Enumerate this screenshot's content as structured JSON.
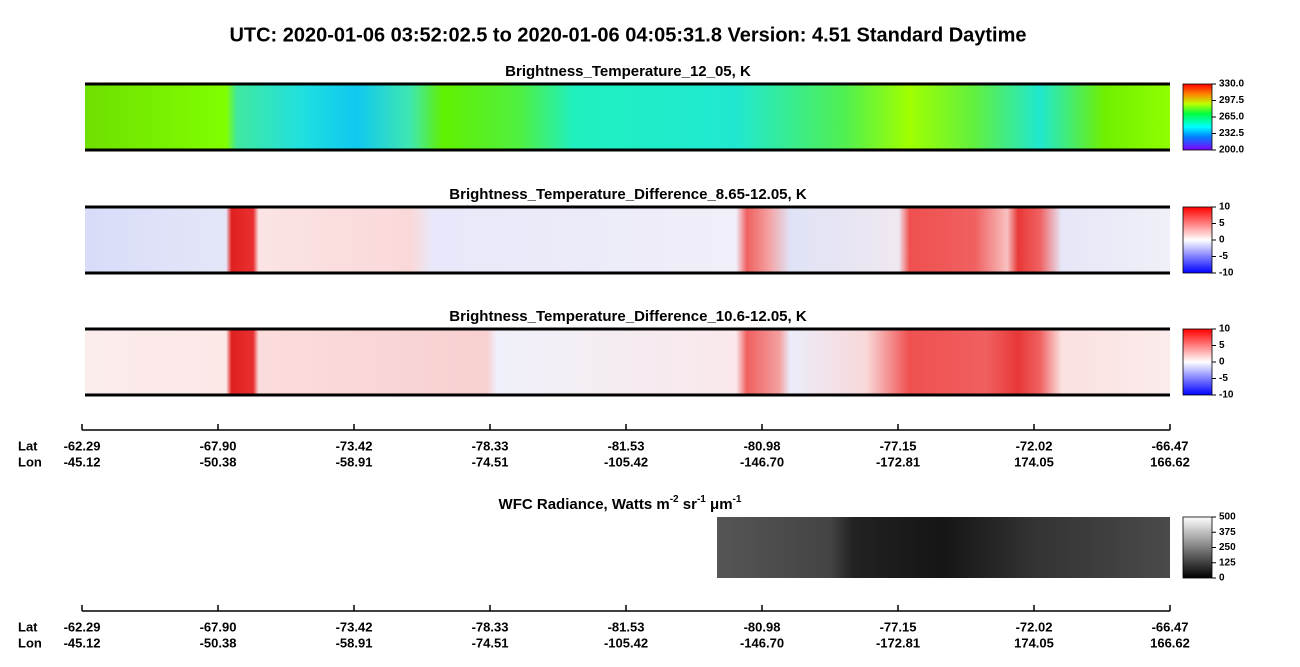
{
  "header": {
    "title": "UTC:  2020-01-06   03:52:02.5  to  2020-01-06   04:05:31.8    Version: 4.51  Standard Daytime"
  },
  "panels": [
    {
      "title": "Brightness_Temperature_12_05, K",
      "colorbar": [
        "330.0",
        "297.5",
        "265.0",
        "232.5",
        "200.0"
      ]
    },
    {
      "title": "Brightness_Temperature_Difference_8.65-12.05, K",
      "colorbar": [
        "10",
        "5",
        "0",
        "-5",
        "-10"
      ]
    },
    {
      "title": "Brightness_Temperature_Difference_10.6-12.05, K",
      "colorbar": [
        "10",
        "5",
        "0",
        "-5",
        "-10"
      ]
    }
  ],
  "axes": [
    {
      "row_labels": [
        "Lat",
        "Lon"
      ],
      "lat": [
        "-62.29",
        "-67.90",
        "-73.42",
        "-78.33",
        "-81.53",
        "-80.98",
        "-77.15",
        "-72.02",
        "-66.47"
      ],
      "lon": [
        "-45.12",
        "-50.38",
        "-58.91",
        "-74.51",
        "-105.42",
        "-146.70",
        "-172.81",
        "174.05",
        "166.62"
      ]
    },
    {
      "row_labels": [
        "Lat",
        "Lon"
      ],
      "lat": [
        "-62.29",
        "-67.90",
        "-73.42",
        "-78.33",
        "-81.53",
        "-80.98",
        "-77.15",
        "-72.02",
        "-66.47"
      ],
      "lon": [
        "-45.12",
        "-50.38",
        "-58.91",
        "-74.51",
        "-105.42",
        "-146.70",
        "-172.81",
        "174.05",
        "166.62"
      ]
    }
  ],
  "wfc": {
    "title_parts": [
      "WFC Radiance, Watts m",
      "-2",
      " sr",
      "-1",
      " μm",
      "-1"
    ],
    "colorbar": [
      "500",
      "375",
      "250",
      "125",
      "0"
    ]
  }
}
